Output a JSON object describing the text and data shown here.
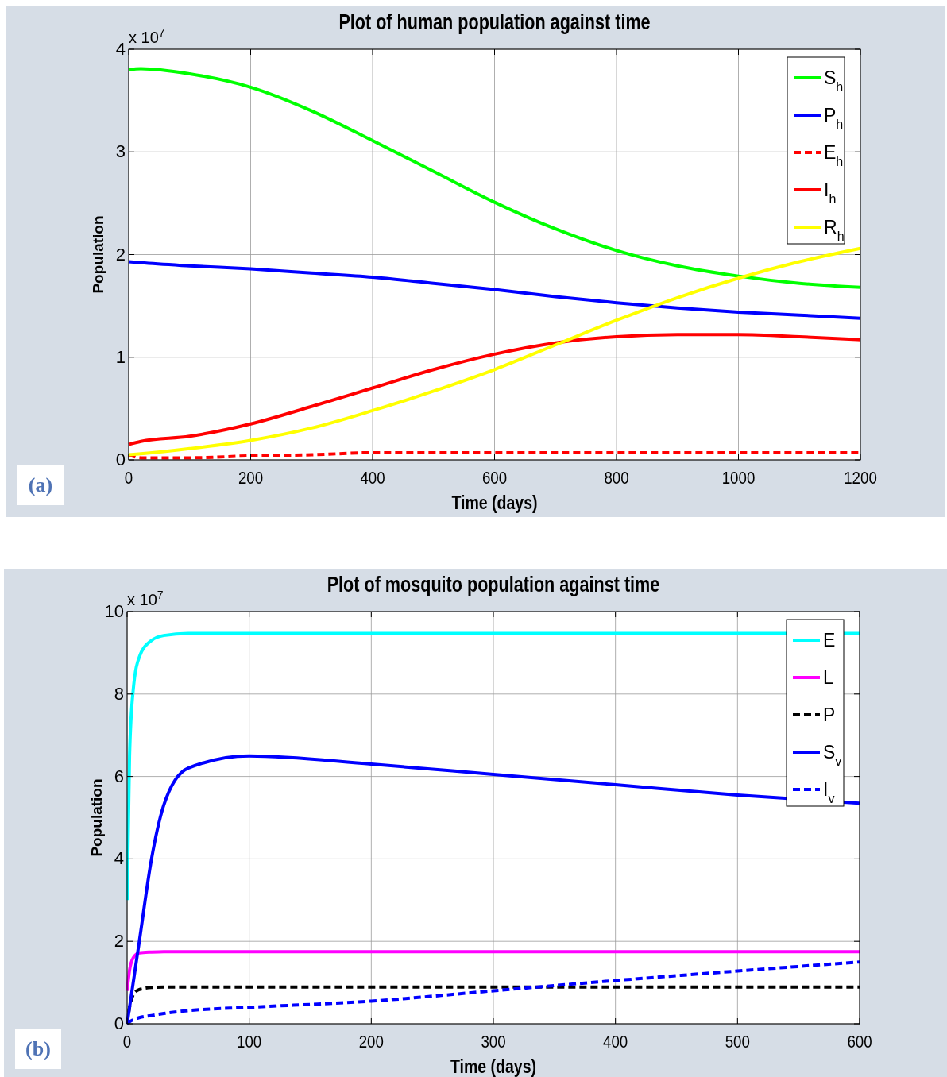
{
  "chart_data": [
    {
      "type": "line",
      "title": "Plot of human population against time",
      "xlabel": "Time (days)",
      "ylabel": "Population",
      "annotations": [
        "x 10$^{7}$",
        "(a)"
      ],
      "x": [
        0,
        20,
        100,
        200,
        300,
        400,
        500,
        600,
        700,
        800,
        900,
        1000,
        1100,
        1200
      ],
      "xlim": [
        0,
        1200
      ],
      "xticks": [
        0,
        200,
        400,
        600,
        800,
        1000,
        1200
      ],
      "ylim": [
        0,
        4
      ],
      "yticks": [
        0,
        1,
        2,
        3,
        4
      ],
      "grid": true,
      "legend": "top right",
      "series": [
        {
          "name": "S$_{h}$",
          "color": "#00ff00",
          "line_style": "solid",
          "values": [
            3.8,
            3.81,
            3.76,
            3.63,
            3.4,
            3.11,
            2.81,
            2.51,
            2.25,
            2.04,
            1.89,
            1.79,
            1.72,
            1.68
          ]
        },
        {
          "name": "P$_{h}$",
          "color": "#0000ff",
          "line_style": "solid",
          "values": [
            1.93,
            1.92,
            1.89,
            1.86,
            1.82,
            1.78,
            1.72,
            1.66,
            1.59,
            1.53,
            1.48,
            1.44,
            1.41,
            1.38
          ]
        },
        {
          "name": "E$_{h}$",
          "color": "#ff0000",
          "line_style": "dashed",
          "values": [
            0.05,
            0.02,
            0.02,
            0.04,
            0.05,
            0.07,
            0.07,
            0.07,
            0.07,
            0.07,
            0.07,
            0.07,
            0.07,
            0.07
          ]
        },
        {
          "name": "I$_{h}$",
          "color": "#ff0000",
          "line_style": "solid",
          "values": [
            0.15,
            0.18,
            0.23,
            0.35,
            0.52,
            0.7,
            0.88,
            1.03,
            1.14,
            1.2,
            1.22,
            1.22,
            1.2,
            1.17
          ]
        },
        {
          "name": "R$_{h}$",
          "color": "#ffff00",
          "line_style": "solid",
          "values": [
            0.05,
            0.06,
            0.11,
            0.19,
            0.31,
            0.48,
            0.67,
            0.88,
            1.12,
            1.36,
            1.58,
            1.77,
            1.93,
            2.06
          ]
        }
      ]
    },
    {
      "type": "line",
      "title": "Plot of mosquito population against time",
      "xlabel": "Time (days)",
      "ylabel": "Population",
      "annotations": [
        "x 10$^{7}$",
        "(b)"
      ],
      "x": [
        0,
        2,
        5,
        10,
        20,
        30,
        50,
        100,
        200,
        300,
        400,
        500,
        600
      ],
      "xlim": [
        0,
        600
      ],
      "xticks": [
        0,
        100,
        200,
        300,
        400,
        500,
        600
      ],
      "ylim": [
        0,
        10
      ],
      "yticks": [
        0,
        2,
        4,
        6,
        8,
        10
      ],
      "grid": true,
      "legend": "top right",
      "series": [
        {
          "name": "E",
          "color": "#00ffff",
          "line_style": "solid",
          "values": [
            3,
            6.5,
            8.1,
            8.9,
            9.3,
            9.42,
            9.47,
            9.47,
            9.47,
            9.47,
            9.47,
            9.47,
            9.47
          ]
        },
        {
          "name": "L",
          "color": "#ff00ff",
          "line_style": "solid",
          "values": [
            0.8,
            1.3,
            1.6,
            1.72,
            1.74,
            1.75,
            1.75,
            1.75,
            1.75,
            1.75,
            1.75,
            1.75,
            1.75
          ]
        },
        {
          "name": "P",
          "color": "#000000",
          "line_style": "dashed",
          "values": [
            0,
            0.4,
            0.7,
            0.83,
            0.88,
            0.89,
            0.89,
            0.89,
            0.89,
            0.89,
            0.89,
            0.89,
            0.89
          ]
        },
        {
          "name": "S$_{v}$",
          "color": "#0000ff",
          "line_style": "solid",
          "values": [
            0,
            0.4,
            1,
            2,
            4,
            5.3,
            6.2,
            6.5,
            6.3,
            6.05,
            5.8,
            5.55,
            5.35
          ]
        },
        {
          "name": "I$_{v}$",
          "color": "#0000ff",
          "line_style": "dashed",
          "values": [
            0,
            0.05,
            0.1,
            0.15,
            0.2,
            0.25,
            0.32,
            0.4,
            0.55,
            0.8,
            1.05,
            1.28,
            1.5
          ]
        }
      ]
    }
  ]
}
